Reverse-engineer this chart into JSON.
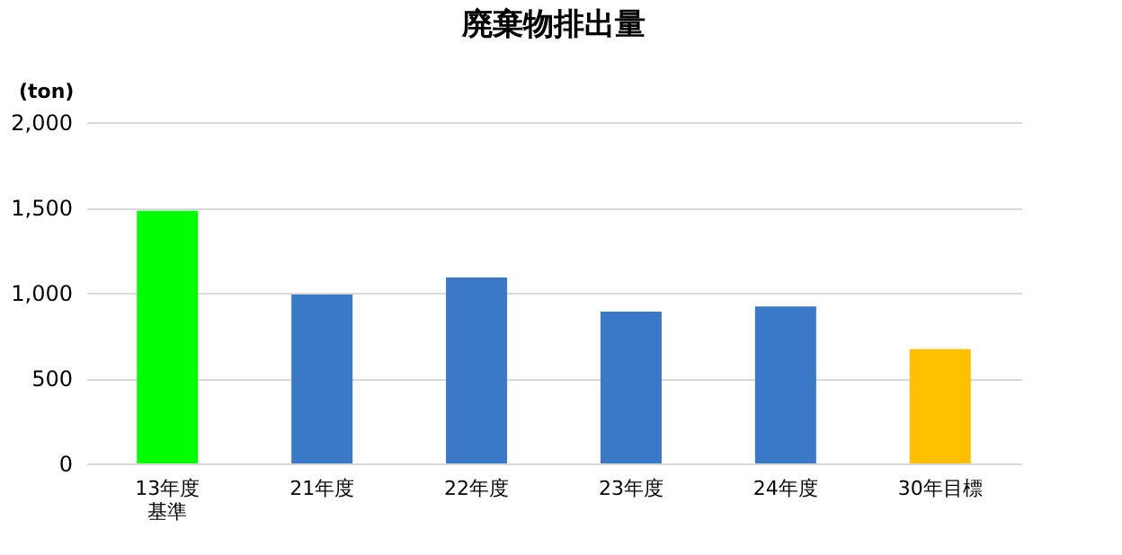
{
  "chart_data": {
    "type": "bar",
    "title": "廃棄物排出量",
    "ylabel": "(ton)",
    "categories": [
      "13年度基準",
      "21年度",
      "22年度",
      "23年度",
      "24年度",
      "30年目標"
    ],
    "values": [
      1480,
      990,
      1090,
      890,
      920,
      670
    ],
    "colors": [
      "#00ff00",
      "#3a78c8",
      "#3a78c8",
      "#3a78c8",
      "#3a78c8",
      "#ffc000"
    ],
    "ylim": [
      0,
      2000
    ],
    "yticks": [
      0,
      500,
      {
        "value": 1000,
        "label": "1,000"
      },
      {
        "value": 1500,
        "label": "1,500"
      },
      {
        "value": 2000,
        "label": "2,000"
      }
    ],
    "grid": "y"
  }
}
